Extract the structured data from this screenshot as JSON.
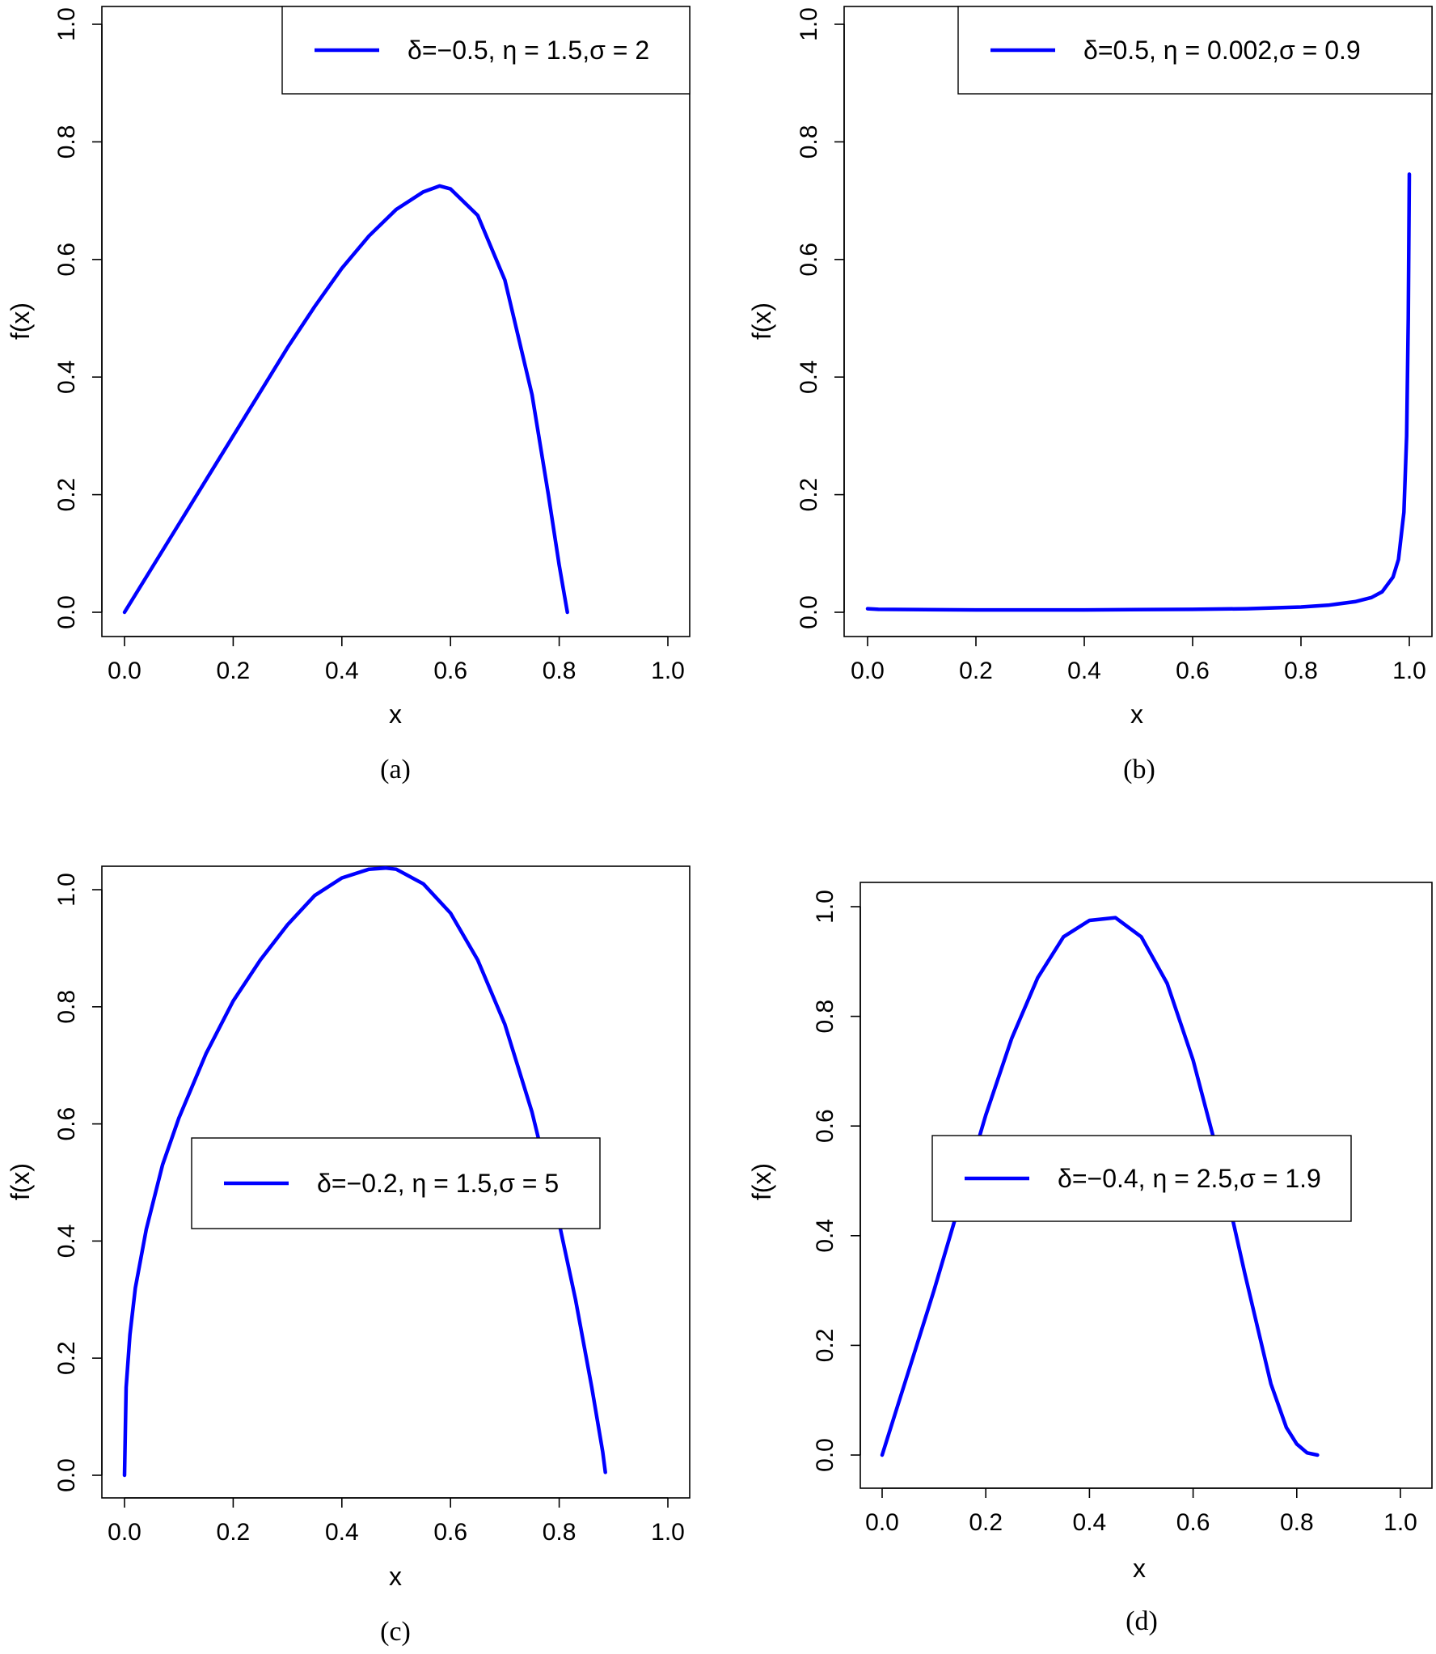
{
  "colors": {
    "series": "#0000ff",
    "axis": "#000000",
    "background": "#ffffff"
  },
  "chart_data": [
    {
      "panel": "(a)",
      "type": "line",
      "xlabel": "x",
      "ylabel": "f(x)",
      "xlim": [
        0,
        1.0
      ],
      "ylim": [
        0,
        1.0
      ],
      "xticks": [
        "0.0",
        "0.2",
        "0.4",
        "0.6",
        "0.8",
        "1.0"
      ],
      "yticks": [
        "0.0",
        "0.2",
        "0.4",
        "0.6",
        "0.8",
        "1.0"
      ],
      "legend_position": "top-right",
      "series": [
        {
          "name": "δ=−0.5, η = 1.5,σ = 2",
          "x": [
            0.0,
            0.05,
            0.1,
            0.15,
            0.2,
            0.25,
            0.3,
            0.35,
            0.4,
            0.45,
            0.5,
            0.55,
            0.58,
            0.6,
            0.65,
            0.7,
            0.75,
            0.78,
            0.8,
            0.815
          ],
          "y": [
            0.0,
            0.075,
            0.15,
            0.225,
            0.3,
            0.375,
            0.45,
            0.52,
            0.585,
            0.64,
            0.685,
            0.715,
            0.725,
            0.72,
            0.675,
            0.565,
            0.37,
            0.2,
            0.08,
            0.0
          ]
        }
      ]
    },
    {
      "panel": "(b)",
      "type": "line",
      "xlabel": "x",
      "ylabel": "f(x)",
      "xlim": [
        0,
        1.0
      ],
      "ylim": [
        0,
        1.0
      ],
      "xticks": [
        "0.0",
        "0.2",
        "0.4",
        "0.6",
        "0.8",
        "1.0"
      ],
      "yticks": [
        "0.0",
        "0.2",
        "0.4",
        "0.6",
        "0.8",
        "1.0"
      ],
      "legend_position": "top-right",
      "series": [
        {
          "name": "δ=0.5, η = 0.002,σ = 0.9",
          "x": [
            0.0,
            0.02,
            0.2,
            0.4,
            0.6,
            0.7,
            0.8,
            0.85,
            0.9,
            0.93,
            0.95,
            0.97,
            0.98,
            0.99,
            0.995,
            0.998,
            1.0
          ],
          "y": [
            0.006,
            0.005,
            0.004,
            0.004,
            0.005,
            0.006,
            0.009,
            0.012,
            0.018,
            0.025,
            0.035,
            0.06,
            0.09,
            0.17,
            0.3,
            0.5,
            0.745
          ]
        }
      ]
    },
    {
      "panel": "(c)",
      "type": "line",
      "xlabel": "x",
      "ylabel": "f(x)",
      "xlim": [
        0,
        1.0
      ],
      "ylim": [
        0,
        1.0
      ],
      "xticks": [
        "0.0",
        "0.2",
        "0.4",
        "0.6",
        "0.8",
        "1.0"
      ],
      "yticks": [
        "0.0",
        "0.2",
        "0.4",
        "0.6",
        "0.8",
        "1.0"
      ],
      "legend_position": "center",
      "series": [
        {
          "name": "δ=−0.2, η = 1.5,σ = 5",
          "x": [
            0.0,
            0.003,
            0.01,
            0.02,
            0.04,
            0.07,
            0.1,
            0.15,
            0.2,
            0.25,
            0.3,
            0.35,
            0.4,
            0.45,
            0.48,
            0.5,
            0.55,
            0.6,
            0.65,
            0.7,
            0.75,
            0.8,
            0.83,
            0.86,
            0.88,
            0.885
          ],
          "y": [
            0.0,
            0.15,
            0.24,
            0.32,
            0.42,
            0.53,
            0.61,
            0.72,
            0.81,
            0.88,
            0.94,
            0.99,
            1.02,
            1.035,
            1.037,
            1.035,
            1.01,
            0.96,
            0.88,
            0.77,
            0.62,
            0.43,
            0.3,
            0.15,
            0.04,
            0.005
          ]
        }
      ]
    },
    {
      "panel": "(d)",
      "type": "line",
      "xlabel": "x",
      "ylabel": "f(x)",
      "xlim": [
        0,
        1.0
      ],
      "ylim": [
        0,
        1.0
      ],
      "xticks": [
        "0.0",
        "0.2",
        "0.4",
        "0.6",
        "0.8",
        "1.0"
      ],
      "yticks": [
        "0.0",
        "0.2",
        "0.4",
        "0.6",
        "0.8",
        "1.0"
      ],
      "legend_position": "center",
      "series": [
        {
          "name": "δ=−0.4, η = 2.5,σ = 1.9",
          "x": [
            0.0,
            0.03,
            0.06,
            0.1,
            0.15,
            0.2,
            0.25,
            0.3,
            0.35,
            0.4,
            0.45,
            0.5,
            0.55,
            0.6,
            0.65,
            0.7,
            0.75,
            0.78,
            0.8,
            0.82,
            0.84
          ],
          "y": [
            0.0,
            0.09,
            0.18,
            0.3,
            0.46,
            0.62,
            0.76,
            0.87,
            0.945,
            0.975,
            0.98,
            0.945,
            0.86,
            0.72,
            0.54,
            0.33,
            0.13,
            0.05,
            0.02,
            0.004,
            0.0
          ]
        }
      ]
    }
  ]
}
